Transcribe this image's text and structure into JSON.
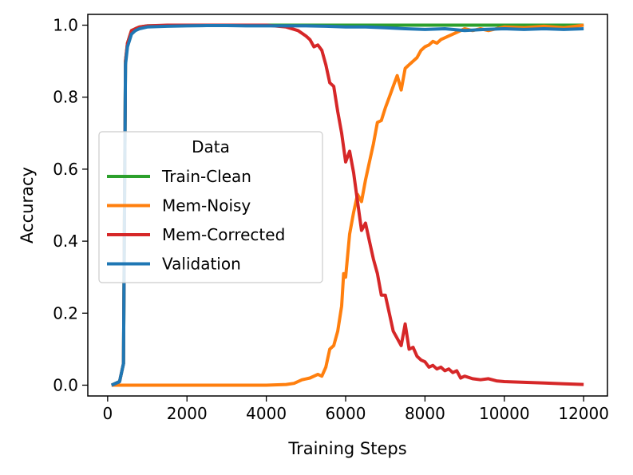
{
  "chart_data": {
    "type": "line",
    "title": "",
    "xlabel": "Training Steps",
    "ylabel": "Accuracy",
    "xlim": [
      -500,
      12600
    ],
    "ylim": [
      -0.03,
      1.03
    ],
    "xticks": [
      0,
      2000,
      4000,
      6000,
      8000,
      10000,
      12000
    ],
    "yticks": [
      0.0,
      0.2,
      0.4,
      0.6,
      0.8,
      1.0
    ],
    "xtick_labels": [
      "0",
      "2000",
      "4000",
      "6000",
      "8000",
      "10000",
      "12000"
    ],
    "ytick_labels": [
      "0.0",
      "0.2",
      "0.4",
      "0.6",
      "0.8",
      "1.0"
    ],
    "legend": {
      "title": "Data",
      "position": "center-left"
    },
    "series": [
      {
        "name": "Train-Clean",
        "color": "#2ca02c",
        "x": [
          100,
          300,
          400,
          450,
          500,
          600,
          700,
          800,
          1000,
          1500,
          2000,
          3000,
          4000,
          5000,
          6000,
          7000,
          8000,
          9000,
          10000,
          11000,
          12000
        ],
        "y": [
          0.0,
          0.01,
          0.06,
          0.9,
          0.95,
          0.985,
          0.99,
          0.995,
          0.998,
          0.999,
          1.0,
          1.0,
          1.0,
          1.0,
          1.0,
          1.0,
          1.0,
          1.0,
          1.0,
          1.0,
          1.0
        ]
      },
      {
        "name": "Mem-Noisy",
        "color": "#ff7f0e",
        "x": [
          100,
          1000,
          2000,
          3000,
          4000,
          4500,
          4700,
          4900,
          5100,
          5300,
          5400,
          5500,
          5600,
          5700,
          5800,
          5900,
          5950,
          6000,
          6100,
          6200,
          6300,
          6400,
          6500,
          6600,
          6700,
          6800,
          6900,
          7000,
          7100,
          7200,
          7300,
          7400,
          7500,
          7600,
          7700,
          7800,
          7900,
          8000,
          8100,
          8200,
          8300,
          8400,
          8500,
          8600,
          8700,
          8800,
          8900,
          9000,
          9200,
          9400,
          9600,
          9800,
          10000,
          10500,
          11000,
          11500,
          11800,
          12000
        ],
        "y": [
          0.0,
          0.0,
          0.0,
          0.0,
          0.0,
          0.002,
          0.005,
          0.015,
          0.02,
          0.03,
          0.025,
          0.05,
          0.1,
          0.11,
          0.15,
          0.22,
          0.31,
          0.3,
          0.42,
          0.48,
          0.53,
          0.51,
          0.57,
          0.62,
          0.67,
          0.73,
          0.735,
          0.77,
          0.8,
          0.83,
          0.86,
          0.82,
          0.88,
          0.89,
          0.9,
          0.91,
          0.93,
          0.94,
          0.945,
          0.955,
          0.95,
          0.96,
          0.965,
          0.97,
          0.975,
          0.98,
          0.985,
          0.99,
          0.985,
          0.99,
          0.985,
          0.99,
          0.995,
          0.993,
          0.997,
          0.993,
          0.997,
          1.0
        ]
      },
      {
        "name": "Mem-Corrected",
        "color": "#d62728",
        "x": [
          100,
          300,
          400,
          450,
          500,
          600,
          700,
          800,
          1000,
          1500,
          2000,
          3000,
          4000,
          4500,
          4800,
          5000,
          5100,
          5200,
          5300,
          5400,
          5500,
          5600,
          5700,
          5800,
          5900,
          6000,
          6100,
          6200,
          6300,
          6400,
          6500,
          6600,
          6700,
          6800,
          6900,
          7000,
          7100,
          7200,
          7300,
          7400,
          7500,
          7600,
          7700,
          7800,
          7900,
          8000,
          8100,
          8200,
          8300,
          8400,
          8500,
          8600,
          8700,
          8800,
          8900,
          9000,
          9200,
          9400,
          9600,
          9800,
          10000,
          10500,
          11000,
          11500,
          12000
        ],
        "y": [
          0.0,
          0.01,
          0.06,
          0.9,
          0.95,
          0.985,
          0.99,
          0.995,
          0.998,
          1.0,
          1.0,
          1.0,
          1.0,
          0.995,
          0.985,
          0.97,
          0.96,
          0.94,
          0.945,
          0.93,
          0.89,
          0.84,
          0.83,
          0.76,
          0.7,
          0.62,
          0.65,
          0.59,
          0.51,
          0.43,
          0.45,
          0.4,
          0.35,
          0.31,
          0.25,
          0.25,
          0.2,
          0.15,
          0.13,
          0.11,
          0.17,
          0.1,
          0.105,
          0.08,
          0.07,
          0.065,
          0.05,
          0.055,
          0.045,
          0.05,
          0.04,
          0.045,
          0.035,
          0.04,
          0.02,
          0.025,
          0.018,
          0.015,
          0.018,
          0.012,
          0.01,
          0.008,
          0.006,
          0.004,
          0.002
        ]
      },
      {
        "name": "Validation",
        "color": "#1f77b4",
        "x": [
          100,
          300,
          400,
          450,
          500,
          600,
          700,
          800,
          1000,
          1500,
          2000,
          2500,
          3000,
          3500,
          4000,
          4500,
          5000,
          5500,
          6000,
          6500,
          7000,
          7500,
          8000,
          8500,
          9000,
          9500,
          10000,
          10500,
          11000,
          11500,
          12000
        ],
        "y": [
          0.0,
          0.01,
          0.06,
          0.89,
          0.94,
          0.975,
          0.985,
          0.99,
          0.995,
          0.997,
          0.998,
          0.999,
          0.999,
          0.998,
          0.998,
          0.998,
          0.998,
          0.997,
          0.995,
          0.995,
          0.993,
          0.99,
          0.988,
          0.99,
          0.985,
          0.988,
          0.99,
          0.988,
          0.99,
          0.988,
          0.99
        ]
      }
    ]
  }
}
